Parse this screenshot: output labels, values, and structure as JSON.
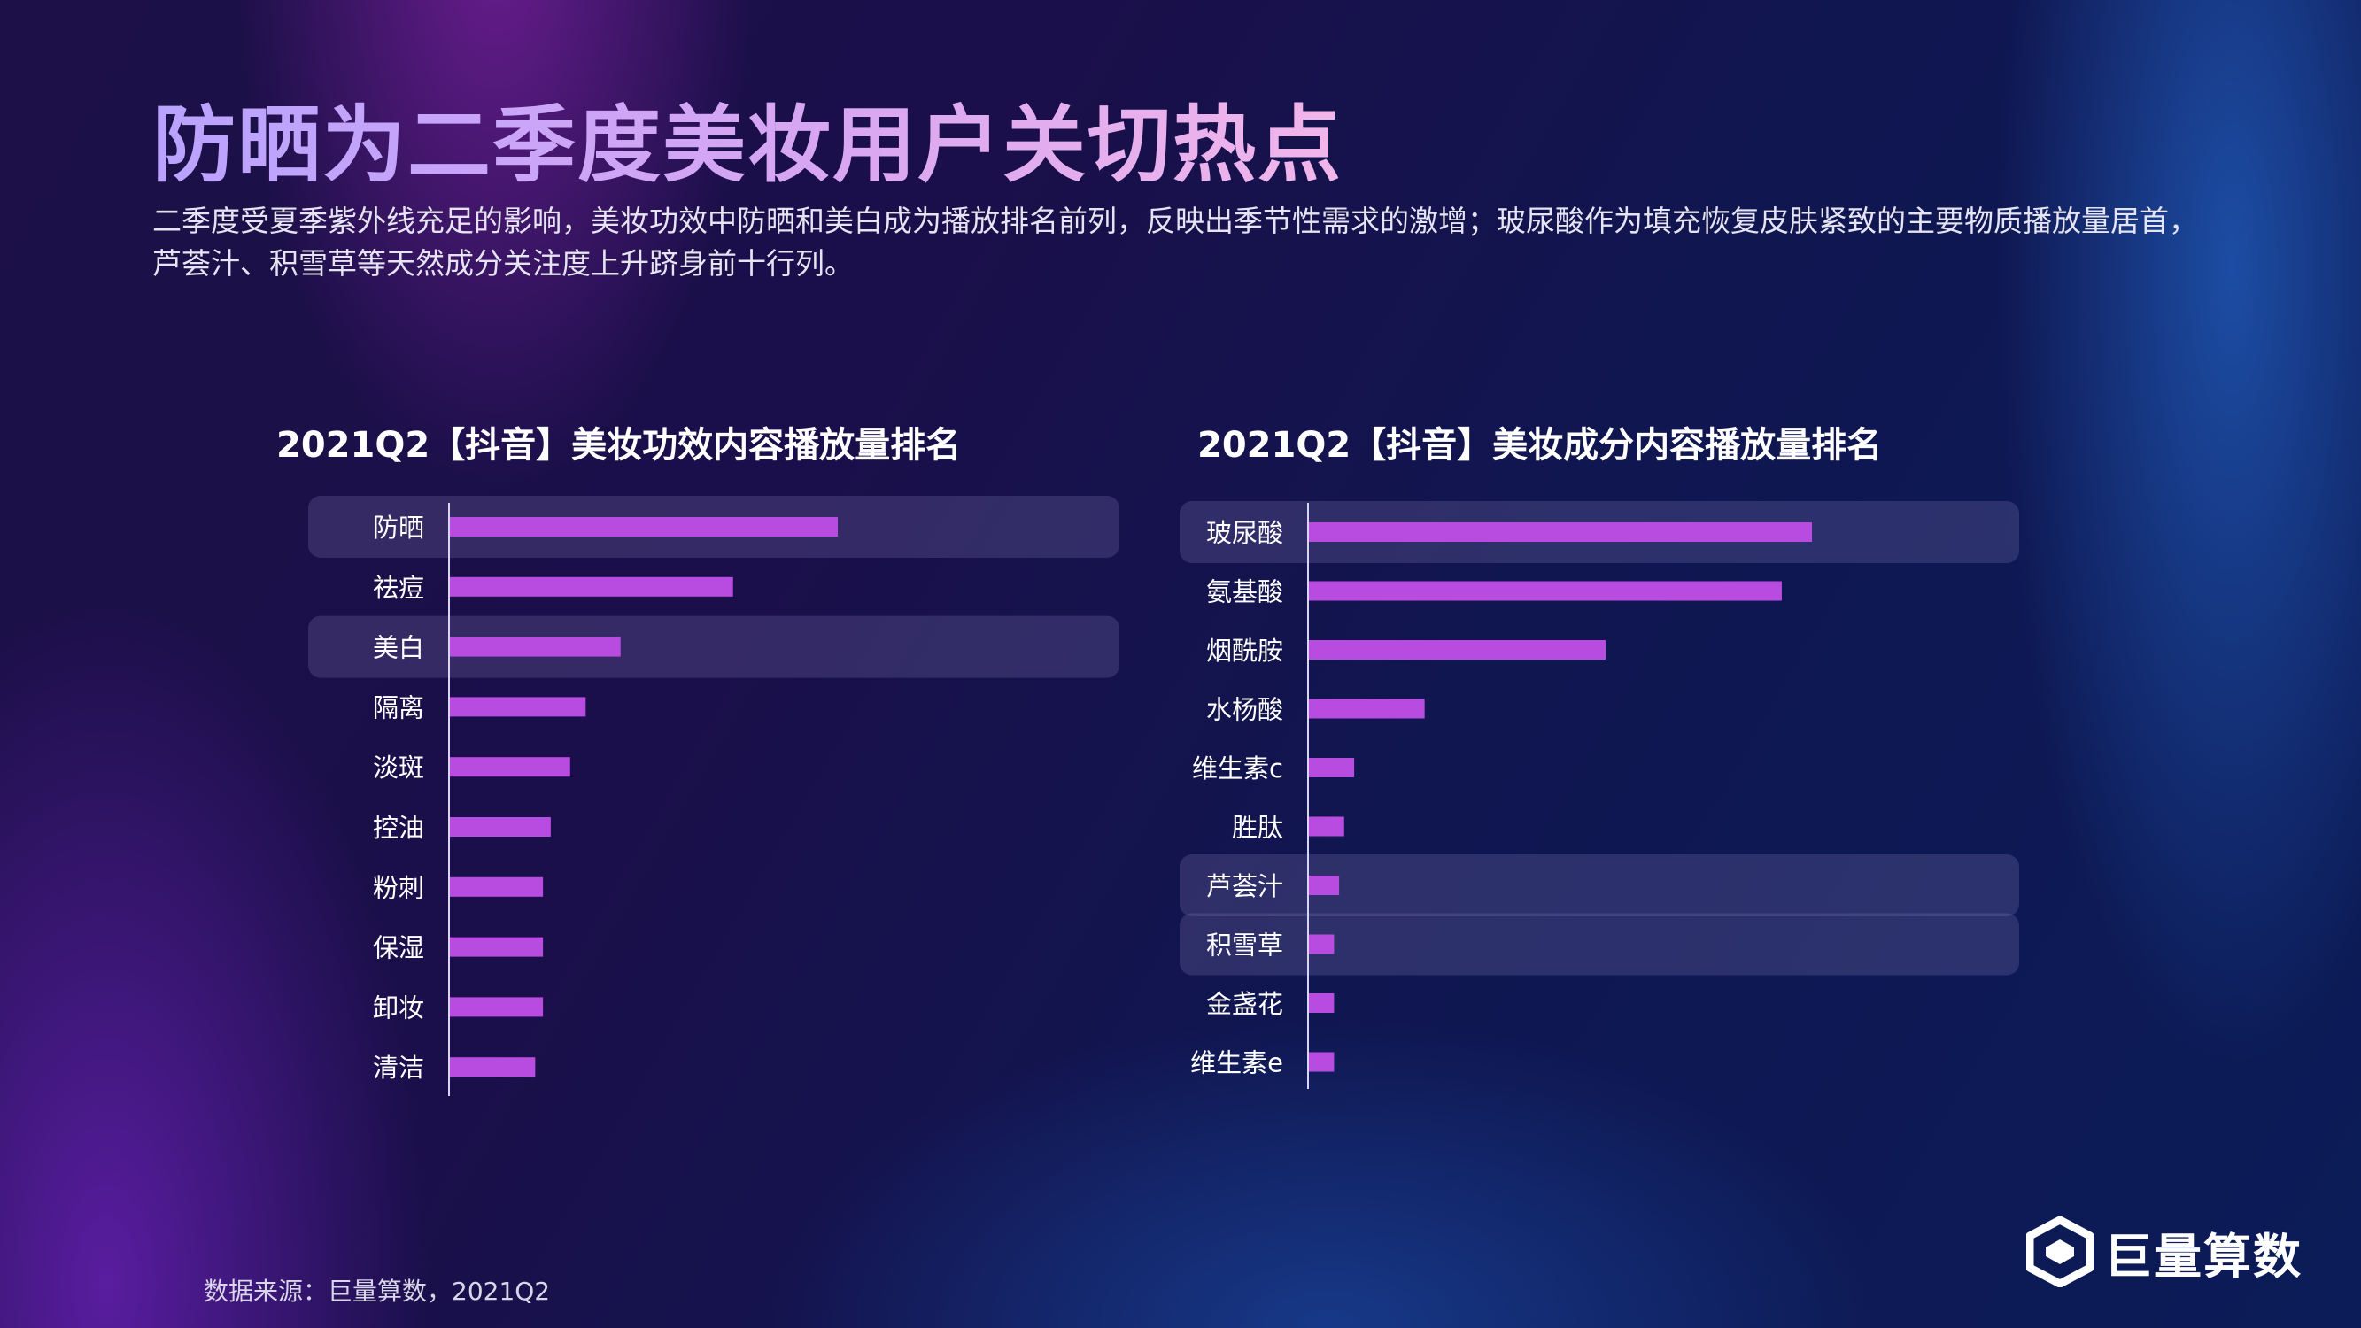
{
  "title": "防晒为二季度美妆用户关切热点",
  "description": "二季度受夏季紫外线充足的影响，美妆功效中防晒和美白成为播放排名前列，反映出季节性需求的激增；玻尿酸作为填充恢复皮肤紧致的主要物质播放量居首，芦荟汁、积雪草等天然成分关注度上升跻身前十行列。",
  "source": "数据来源：巨量算数，2021Q2",
  "logo": {
    "text": "巨量算数",
    "icon": "juliang-logo-icon"
  },
  "colors": {
    "bar": "#b94ce0",
    "highlight_row": "rgba(150,140,200,0.22)",
    "axis": "#d9d5ee"
  },
  "chart_data": [
    {
      "type": "bar",
      "orientation": "horizontal",
      "title": "2021Q2【抖音】美妆功效内容播放量排名",
      "categories": [
        "防晒",
        "祛痘",
        "美白",
        "隔离",
        "淡斑",
        "控油",
        "粉刺",
        "保湿",
        "卸妆",
        "清洁"
      ],
      "values": [
        100,
        73,
        44,
        35,
        31,
        26,
        24,
        24,
        24,
        22
      ],
      "value_unit": "relative (no axis scale shown)",
      "xlim": [
        0,
        100
      ],
      "highlighted": [
        "防晒",
        "美白"
      ],
      "grid": false,
      "legend": "none"
    },
    {
      "type": "bar",
      "orientation": "horizontal",
      "title": "2021Q2【抖音】美妆成分内容播放量排名",
      "categories": [
        "玻尿酸",
        "氨基酸",
        "烟酰胺",
        "水杨酸",
        "维生素c",
        "胜肽",
        "芦荟汁",
        "积雪草",
        "金盏花",
        "维生素e"
      ],
      "values": [
        100,
        94,
        59,
        23,
        9,
        7,
        6,
        5,
        5,
        5
      ],
      "value_unit": "relative (no axis scale shown)",
      "xlim": [
        0,
        100
      ],
      "highlighted": [
        "玻尿酸",
        "芦荟汁",
        "积雪草"
      ],
      "grid": false,
      "legend": "none"
    }
  ]
}
